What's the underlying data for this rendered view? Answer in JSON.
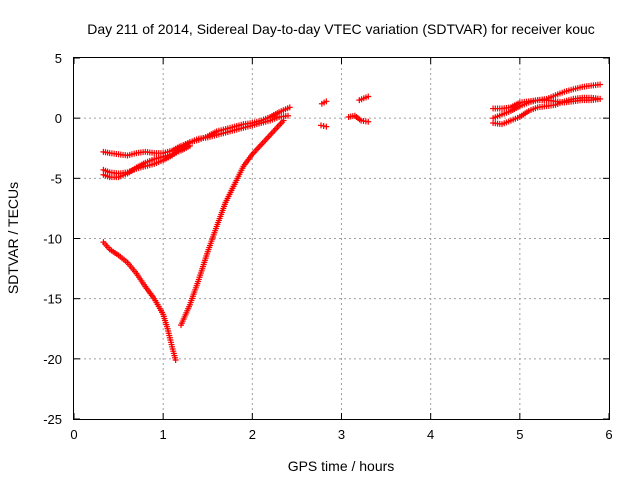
{
  "chart_data": {
    "type": "scatter",
    "title": "Day 211 of 2014, Sidereal Day-to-day VTEC variation (SDTVAR) for receiver kouc",
    "xlabel": "GPS time / hours",
    "ylabel": "SDTVAR / TECUs",
    "xlim": [
      0,
      6
    ],
    "ylim": [
      -25,
      5
    ],
    "xticks": [
      0,
      1,
      2,
      3,
      4,
      5,
      6
    ],
    "yticks": [
      -25,
      -20,
      -15,
      -10,
      -5,
      0,
      5
    ],
    "grid": true,
    "marker": "+",
    "color": "#ff0000",
    "series": [
      {
        "points": [
          [
            0.33,
            -2.8
          ],
          [
            0.4,
            -2.9
          ],
          [
            0.5,
            -3.0
          ],
          [
            0.6,
            -3.1
          ],
          [
            0.7,
            -2.9
          ],
          [
            0.8,
            -2.8
          ],
          [
            0.9,
            -2.9
          ],
          [
            1.0,
            -2.9
          ],
          [
            1.1,
            -2.7
          ],
          [
            1.2,
            -2.3
          ],
          [
            1.3,
            -2.0
          ],
          [
            1.4,
            -1.7
          ],
          [
            1.5,
            -1.6
          ],
          [
            1.6,
            -1.4
          ],
          [
            1.7,
            -1.2
          ],
          [
            1.8,
            -1.0
          ],
          [
            1.9,
            -0.8
          ],
          [
            2.0,
            -0.6
          ],
          [
            2.1,
            -0.4
          ],
          [
            2.2,
            -0.2
          ],
          [
            2.3,
            0.1
          ],
          [
            2.4,
            0.2
          ]
        ]
      },
      {
        "points": [
          [
            0.33,
            -4.3
          ],
          [
            0.4,
            -4.5
          ],
          [
            0.5,
            -4.6
          ],
          [
            0.6,
            -4.5
          ],
          [
            0.7,
            -4.2
          ],
          [
            0.8,
            -4.0
          ],
          [
            0.9,
            -3.8
          ],
          [
            1.0,
            -3.5
          ],
          [
            1.1,
            -3.1
          ],
          [
            1.2,
            -2.5
          ],
          [
            1.3,
            -2.0
          ],
          [
            1.4,
            -1.8
          ],
          [
            1.5,
            -1.5
          ],
          [
            1.6,
            -1.1
          ],
          [
            1.7,
            -0.9
          ],
          [
            1.8,
            -0.7
          ],
          [
            1.9,
            -0.5
          ],
          [
            2.0,
            -0.4
          ],
          [
            2.1,
            -0.2
          ],
          [
            2.2,
            0.1
          ],
          [
            2.3,
            0.5
          ],
          [
            2.42,
            0.9
          ]
        ]
      },
      {
        "points": [
          [
            0.33,
            -4.7
          ],
          [
            0.4,
            -4.9
          ],
          [
            0.5,
            -4.9
          ],
          [
            0.6,
            -4.6
          ],
          [
            0.7,
            -4.1
          ],
          [
            0.8,
            -3.7
          ],
          [
            0.9,
            -3.4
          ],
          [
            1.0,
            -3.2
          ],
          [
            1.1,
            -3.0
          ],
          [
            1.2,
            -2.7
          ],
          [
            1.3,
            -2.3
          ]
        ]
      },
      {
        "points": [
          [
            0.33,
            -10.3
          ],
          [
            0.4,
            -10.9
          ],
          [
            0.5,
            -11.4
          ],
          [
            0.6,
            -12.0
          ],
          [
            0.7,
            -12.9
          ],
          [
            0.8,
            -14.0
          ],
          [
            0.9,
            -15.0
          ],
          [
            1.0,
            -16.3
          ],
          [
            1.05,
            -17.5
          ],
          [
            1.1,
            -19.0
          ],
          [
            1.14,
            -20.1
          ]
        ]
      },
      {
        "points": [
          [
            1.2,
            -17.2
          ],
          [
            1.3,
            -15.5
          ],
          [
            1.4,
            -13.4
          ],
          [
            1.5,
            -11.1
          ],
          [
            1.6,
            -9.0
          ],
          [
            1.7,
            -7.0
          ],
          [
            1.8,
            -5.5
          ],
          [
            1.9,
            -4.0
          ],
          [
            2.0,
            -3.0
          ],
          [
            2.1,
            -2.2
          ],
          [
            2.2,
            -1.4
          ],
          [
            2.3,
            -0.6
          ],
          [
            2.35,
            -0.2
          ]
        ]
      },
      {
        "points": [
          [
            2.78,
            1.2
          ],
          [
            2.83,
            1.4
          ]
        ]
      },
      {
        "points": [
          [
            2.77,
            -0.6
          ],
          [
            2.83,
            -0.7
          ]
        ]
      },
      {
        "points": [
          [
            3.2,
            1.5
          ],
          [
            3.3,
            1.8
          ]
        ]
      },
      {
        "points": [
          [
            3.08,
            0.1
          ],
          [
            3.15,
            0.2
          ],
          [
            3.22,
            -0.2
          ],
          [
            3.3,
            -0.3
          ]
        ]
      },
      {
        "points": [
          [
            4.7,
            0.8
          ],
          [
            4.8,
            0.8
          ],
          [
            4.9,
            0.9
          ],
          [
            5.0,
            1.3
          ],
          [
            5.1,
            1.4
          ],
          [
            5.2,
            1.5
          ],
          [
            5.3,
            1.6
          ],
          [
            5.4,
            1.9
          ],
          [
            5.5,
            2.2
          ],
          [
            5.6,
            2.4
          ],
          [
            5.7,
            2.6
          ],
          [
            5.8,
            2.7
          ],
          [
            5.9,
            2.8
          ]
        ]
      },
      {
        "points": [
          [
            4.7,
            0.0
          ],
          [
            4.8,
            0.3
          ],
          [
            4.9,
            0.6
          ],
          [
            5.0,
            1.0
          ],
          [
            5.1,
            1.3
          ],
          [
            5.2,
            1.5
          ],
          [
            5.3,
            1.5
          ],
          [
            5.4,
            1.4
          ],
          [
            5.5,
            1.3
          ],
          [
            5.6,
            1.4
          ],
          [
            5.7,
            1.5
          ],
          [
            5.8,
            1.5
          ],
          [
            5.9,
            1.6
          ]
        ]
      },
      {
        "points": [
          [
            4.7,
            -0.4
          ],
          [
            4.8,
            -0.5
          ],
          [
            4.9,
            -0.2
          ],
          [
            5.0,
            0.1
          ],
          [
            5.1,
            0.6
          ],
          [
            5.2,
            0.9
          ],
          [
            5.3,
            1.0
          ],
          [
            5.4,
            1.1
          ],
          [
            5.5,
            1.4
          ],
          [
            5.6,
            1.6
          ],
          [
            5.7,
            1.7
          ],
          [
            5.8,
            1.7
          ],
          [
            5.9,
            1.6
          ]
        ]
      }
    ]
  }
}
